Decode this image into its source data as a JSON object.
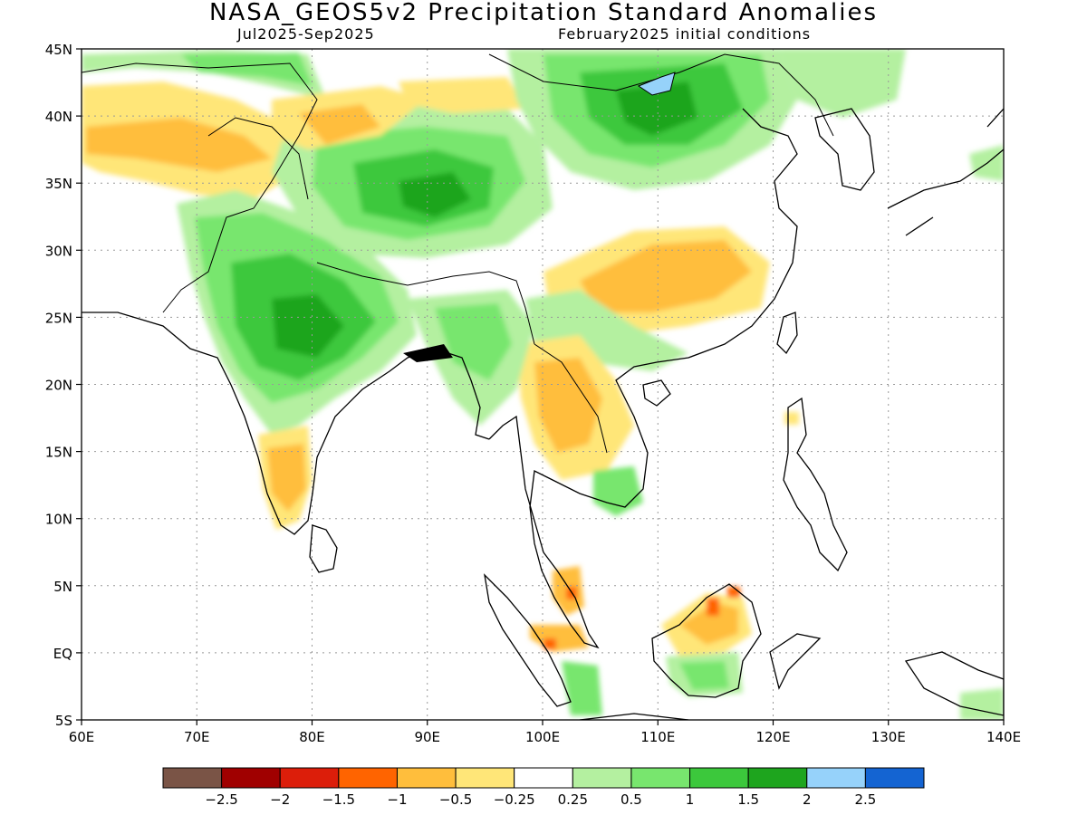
{
  "header": {
    "title": "NASA_GEOS5v2 Precipitation Standard Anomalies",
    "period": "Jul2025-Sep2025",
    "init": "February2025 initial conditions"
  },
  "chart_data": {
    "type": "heatmap",
    "x_ticks": [
      "60E",
      "70E",
      "80E",
      "90E",
      "100E",
      "110E",
      "120E",
      "130E",
      "140E"
    ],
    "y_ticks": [
      "45N",
      "40N",
      "35N",
      "30N",
      "25N",
      "20N",
      "15N",
      "10N",
      "5N",
      "EQ",
      "5S"
    ],
    "xlim": [
      60,
      140
    ],
    "ylim": [
      -5,
      45
    ],
    "colorbar": {
      "labels": [
        "-2.5",
        "-2",
        "-1.5",
        "-1",
        "-0.5",
        "-0.25",
        "0.25",
        "0.5",
        "1",
        "1.5",
        "2",
        "2.5"
      ],
      "colors": [
        "#7a5446",
        "#a00000",
        "#dc1e0a",
        "#ff6400",
        "#ffbe3c",
        "#ffe678",
        "#ffffff",
        "#b4f0a0",
        "#78e66e",
        "#3cc83c",
        "#1ea51e",
        "#96d2fa",
        "#1464d2"
      ]
    },
    "regions": [
      {
        "id": "india-central",
        "sign": "positive",
        "level": "1.5",
        "lon": [
          74,
          84
        ],
        "lat": [
          20,
          30
        ]
      },
      {
        "id": "tibet",
        "sign": "positive",
        "level": "1.5",
        "lon": [
          87,
          98
        ],
        "lat": [
          30,
          37
        ]
      },
      {
        "id": "mongolia",
        "sign": "positive",
        "level": "1.5",
        "lon": [
          104,
          115
        ],
        "lat": [
          36,
          45
        ]
      },
      {
        "id": "south-india",
        "sign": "negative",
        "level": "-0.5",
        "lon": [
          76,
          80
        ],
        "lat": [
          10,
          16
        ]
      },
      {
        "id": "east-china",
        "sign": "negative",
        "level": "-0.5",
        "lon": [
          105,
          118
        ],
        "lat": [
          25,
          31
        ]
      },
      {
        "id": "indochina",
        "sign": "negative",
        "level": "-0.5",
        "lon": [
          99,
          106
        ],
        "lat": [
          13,
          22
        ]
      },
      {
        "id": "borneo-north",
        "sign": "negative",
        "level": "-1.5",
        "lon": [
          113,
          117
        ],
        "lat": [
          2,
          5
        ]
      },
      {
        "id": "malaya",
        "sign": "negative",
        "level": "-1.5",
        "lon": [
          102,
          104
        ],
        "lat": [
          3,
          6
        ]
      }
    ]
  }
}
